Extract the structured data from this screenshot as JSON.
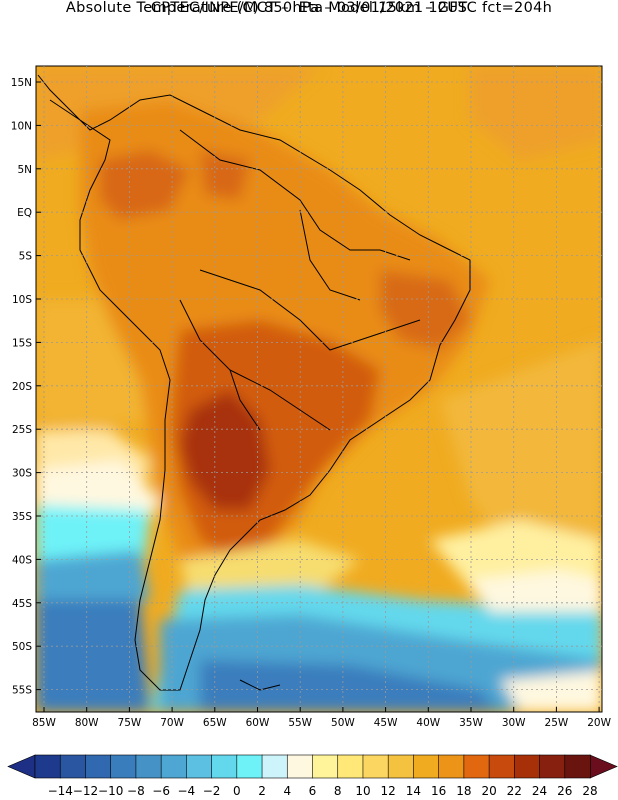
{
  "header": {
    "line1": "CPTEC/INPE/MCT –  Eta Model 15km – GFS",
    "line2": "Absolute Temperature (C) 850hPa – 03/01/2021 12UTC fct=204h"
  },
  "map": {
    "lat_labels": [
      "15N",
      "10N",
      "5N",
      "EQ",
      "5S",
      "10S",
      "15S",
      "20S",
      "25S",
      "30S",
      "35S",
      "40S",
      "45S",
      "50S",
      "55S"
    ],
    "lon_labels": [
      "85W",
      "80W",
      "75W",
      "70W",
      "65W",
      "60W",
      "55W",
      "50W",
      "45W",
      "40W",
      "35W",
      "30W",
      "25W",
      "20W"
    ]
  },
  "colorbar": {
    "labels": [
      "-14",
      "-12",
      "-10",
      "-8",
      "-6",
      "-4",
      "-2",
      "0",
      "2",
      "4",
      "6",
      "8",
      "10",
      "12",
      "14",
      "16",
      "18",
      "20",
      "22",
      "24",
      "26",
      "28"
    ],
    "colors": [
      "#1e3a8c",
      "#2a55a0",
      "#3169b0",
      "#3a7dbd",
      "#4492c6",
      "#4ea6d2",
      "#5bc0e2",
      "#63d8ec",
      "#6ef2f8",
      "#cdf4fa",
      "#fff8e0",
      "#fff49a",
      "#ffe878",
      "#fbd660",
      "#f5c240",
      "#f0ab20",
      "#ec9418",
      "#e26810",
      "#c84a0c",
      "#a83008",
      "#882010",
      "#6a1410"
    ]
  }
}
